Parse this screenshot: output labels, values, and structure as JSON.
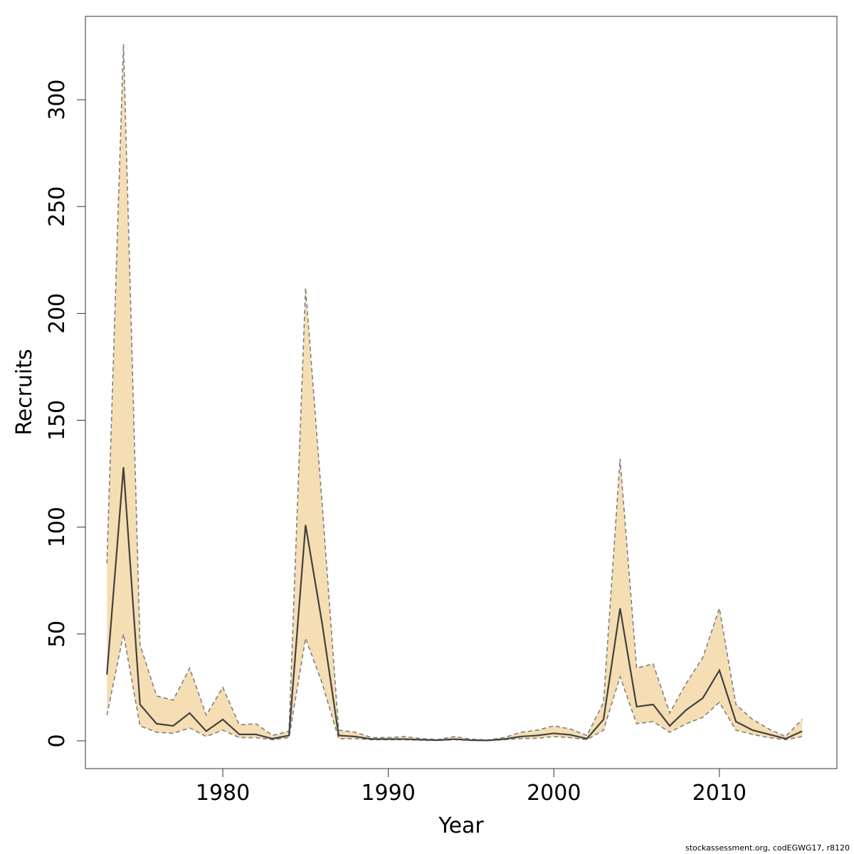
{
  "chart_data": {
    "type": "area",
    "xlabel": "Year",
    "ylabel": "Recruits",
    "xlim": [
      1971.7,
      2017.1
    ],
    "ylim": [
      -13,
      339
    ],
    "x_ticks": [
      1980,
      1990,
      2000,
      2010
    ],
    "y_ticks": [
      0,
      50,
      100,
      150,
      200,
      250,
      300
    ],
    "grid": false,
    "colors": {
      "band": "#f5deb3",
      "bound_line": "#808080",
      "estimate_line": "#404040"
    },
    "x": [
      1973,
      1974,
      1975,
      1976,
      1977,
      1978,
      1979,
      1980,
      1981,
      1982,
      1983,
      1984,
      1985,
      1986,
      1987,
      1988,
      1989,
      1990,
      1991,
      1992,
      1993,
      1994,
      1995,
      1996,
      1997,
      1998,
      1999,
      2000,
      2001,
      2002,
      2003,
      2004,
      2005,
      2006,
      2007,
      2008,
      2009,
      2010,
      2011,
      2012,
      2013,
      2014,
      2015
    ],
    "series": [
      {
        "values": [
          12,
          50,
          7,
          4,
          3.5,
          6,
          2,
          5,
          1.5,
          1.5,
          0.5,
          1.5,
          48,
          27,
          1,
          1,
          0.5,
          0.5,
          0.5,
          0.3,
          0.2,
          0.5,
          0.2,
          0.1,
          0.5,
          1,
          1.2,
          2,
          1.5,
          0.5,
          5,
          30,
          8,
          9,
          4,
          8,
          11,
          18,
          5,
          3,
          1.5,
          0.5,
          2
        ]
      },
      {
        "values": [
          31,
          128,
          17,
          8,
          7,
          13,
          4.5,
          10,
          3,
          3,
          1,
          2.5,
          101,
          55,
          2.5,
          2,
          0.8,
          0.8,
          0.8,
          0.5,
          0.3,
          0.8,
          0.3,
          0.2,
          0.8,
          2,
          2.5,
          3.5,
          2.8,
          1,
          10,
          62,
          16,
          17,
          7,
          14.5,
          20,
          33,
          9,
          5,
          3,
          1,
          4.5
        ]
      },
      {
        "values": [
          83,
          326,
          45,
          21,
          19,
          34,
          12,
          25,
          7.5,
          8,
          2.5,
          4.5,
          212,
          111,
          5,
          4,
          1.5,
          1.5,
          2,
          1,
          0.6,
          2,
          0.8,
          0.4,
          1.5,
          4,
          5,
          7,
          5.5,
          2.5,
          18,
          132,
          34,
          36,
          13,
          27,
          39,
          62,
          17,
          10,
          5.5,
          2,
          10
        ]
      }
    ]
  },
  "footer": {
    "credit": "stockassessment.org, codEGWG17, r8120"
  }
}
